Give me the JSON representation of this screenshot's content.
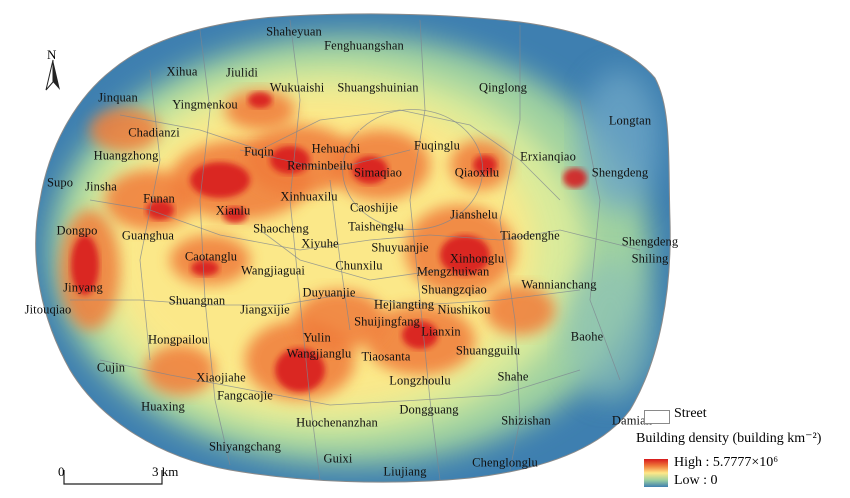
{
  "map": {
    "north_label": "N",
    "scale": {
      "start_label": "0",
      "end_label": "3 km"
    },
    "legend": {
      "street_label": "Street",
      "title": "Building density (building km⁻²)",
      "high_label": "High : 5.7777×10⁶",
      "low_label": "Low : 0",
      "colors": {
        "high": "#d7191c",
        "mid_high": "#f07c3b",
        "mid": "#ffe888",
        "mid_low": "#9fd1a0",
        "low": "#3e7fb0"
      }
    },
    "streets": [
      "Shaheyuan",
      "Fenghuangshan",
      "Xihua",
      "Jiulidi",
      "Wukuaishi",
      "Shuangshuinian",
      "Qinglong",
      "Jinquan",
      "Yingmenkou",
      "Longtan",
      "Chadianzi",
      "Hehuachi",
      "Fuqinglu",
      "Erxianqiao",
      "Huangzhong",
      "Fuqin",
      "Renminbeilu",
      "Simaqiao",
      "Qiaoxilu",
      "Shengdeng",
      "Supo",
      "Jinsha",
      "Funan",
      "Xinhuaxilu",
      "Caoshijie",
      "Xianlu",
      "Taishenglu",
      "Jianshelu",
      "Dongpo",
      "Shaocheng",
      "Tiaodenghe",
      "Guanghua",
      "Xiyuhe",
      "Shuyuanjie",
      "Shengdeng",
      "Shiling",
      "Caotanglu",
      "Xinhonglu",
      "Chunxilu",
      "Wangjiaguai",
      "Mengzhuiwan",
      "Jinyang",
      "Wannianchang",
      "Shuangzqiao",
      "Duyuanjie",
      "Shuangnan",
      "Hejiangting",
      "Jitouqiao",
      "Niushikou",
      "Jiangxijie",
      "Shuijingfang",
      "Lianxin",
      "Baohe",
      "Hongpailou",
      "Yulin",
      "Wangjianglu",
      "Tiaosanta",
      "Shuangguilu",
      "Cujin",
      "Xiaojiahe",
      "Longzhoulu",
      "Shahe",
      "Fangcaojie",
      "Huaxing",
      "Dongguang",
      "Shizishan",
      "Damian",
      "Huochenanzhan",
      "Shiyangchang",
      "Guixi",
      "Chenglonglu",
      "Liujiang"
    ]
  }
}
